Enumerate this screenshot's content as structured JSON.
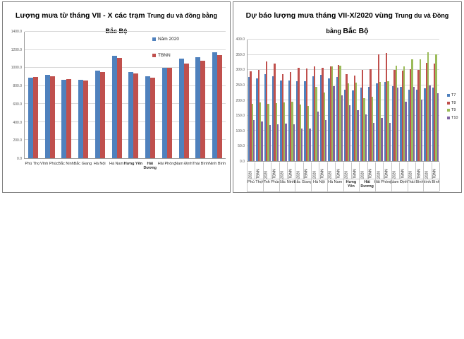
{
  "page": {
    "background": "#ffffff"
  },
  "chart_data": [
    {
      "type": "bar",
      "title": "Lượng mưa từ tháng VII - X các trạm Trung du và đồng bằng Bắc Bộ",
      "title_parts": [
        {
          "text": "Lượng mưa từ tháng VII - X các trạm ",
          "size": "lg"
        },
        {
          "text": "Trung du và đồng bằng Bắc Bộ",
          "size": "sm"
        }
      ],
      "categories": [
        {
          "label": "Phú Thọ"
        },
        {
          "label": "Vĩnh Phúc"
        },
        {
          "label": "Bắc Ninh"
        },
        {
          "label": "Bắc Giang"
        },
        {
          "label": "Hà Nội"
        },
        {
          "label": "Hà Nam"
        },
        {
          "label": "Hưng Yên",
          "bold": true
        },
        {
          "label": "Hải\nDương",
          "bold": true
        },
        {
          "label": "Hải Phòng"
        },
        {
          "label": "Nam Định"
        },
        {
          "label": "Thái Bình"
        },
        {
          "label": "Ninh Bình"
        }
      ],
      "series": [
        {
          "name": "Năm 2020",
          "color": "#4F81BD",
          "values": [
            895,
            921,
            869,
            869,
            971,
            1133,
            956,
            905,
            1004,
            1105,
            1121,
            1177
          ]
        },
        {
          "name": "TBNN",
          "color": "#C0504D",
          "values": [
            898,
            911,
            874,
            861,
            952,
            1114,
            937,
            889,
            998,
            1051,
            1078,
            1142
          ]
        }
      ],
      "ylim": [
        0,
        1400
      ],
      "ytick_step": 200,
      "grid": true,
      "legend_position": "inside-top-right"
    },
    {
      "type": "bar",
      "title": "Dự báo lượng mưa tháng VII-X/2020 vùng Trung du và Đồng bằng Bắc Bộ",
      "title_parts": [
        {
          "text": "Dự báo lượng mưa tháng VII-X/2020 vùng ",
          "size": "lg"
        },
        {
          "text": "Trung du và Đồng bằng ",
          "size": "sm"
        },
        {
          "text": "Bắc Bộ",
          "size": "lg"
        }
      ],
      "categories": [
        {
          "label": "Phú Thọ"
        },
        {
          "label": "Vĩnh Phúc"
        },
        {
          "label": "Bắc Ninh"
        },
        {
          "label": "Bắc Giang"
        },
        {
          "label": "Hà Nội"
        },
        {
          "label": "Hà Nam"
        },
        {
          "label": "Hưng\nYên",
          "bold": true
        },
        {
          "label": "Hải\nDương",
          "bold": true
        },
        {
          "label": "Hải Phòng"
        },
        {
          "label": "Nam Định"
        },
        {
          "label": "Thái Bình"
        },
        {
          "label": "Ninh Bình"
        }
      ],
      "subcategories": [
        "2020",
        "TBNN"
      ],
      "series": [
        {
          "name": "T7",
          "color": "#4F81BD",
          "values": [
            277,
            271,
            285,
            280,
            266,
            266,
            262,
            263,
            278,
            284,
            272,
            276,
            234,
            232,
            242,
            245,
            257,
            261,
            247,
            245,
            234,
            235,
            239,
            242
          ]
        },
        {
          "name": "T8",
          "color": "#C0504D",
          "values": [
            295,
            301,
            327,
            320,
            286,
            292,
            308,
            305,
            311,
            307,
            312,
            316,
            285,
            282,
            299,
            302,
            352,
            355,
            299,
            297,
            303,
            301,
            324,
            320
          ]
        },
        {
          "name": "T9",
          "color": "#9BBB59",
          "values": [
            188,
            192,
            188,
            190,
            192,
            195,
            185,
            182,
            244,
            226,
            311,
            315,
            257,
            258,
            208,
            211,
            261,
            263,
            315,
            312,
            335,
            336,
            359,
            352
          ]
        },
        {
          "name": "T10",
          "color": "#8064A2",
          "values": [
            134,
            131,
            118,
            120,
            123,
            121,
            108,
            107,
            163,
            134,
            247,
            216,
            184,
            168,
            153,
            126,
            142,
            126,
            242,
            195,
            245,
            203,
            249,
            224
          ]
        }
      ],
      "ylim": [
        0,
        400
      ],
      "ytick_step": 50,
      "grid": true,
      "legend_position": "right"
    }
  ]
}
